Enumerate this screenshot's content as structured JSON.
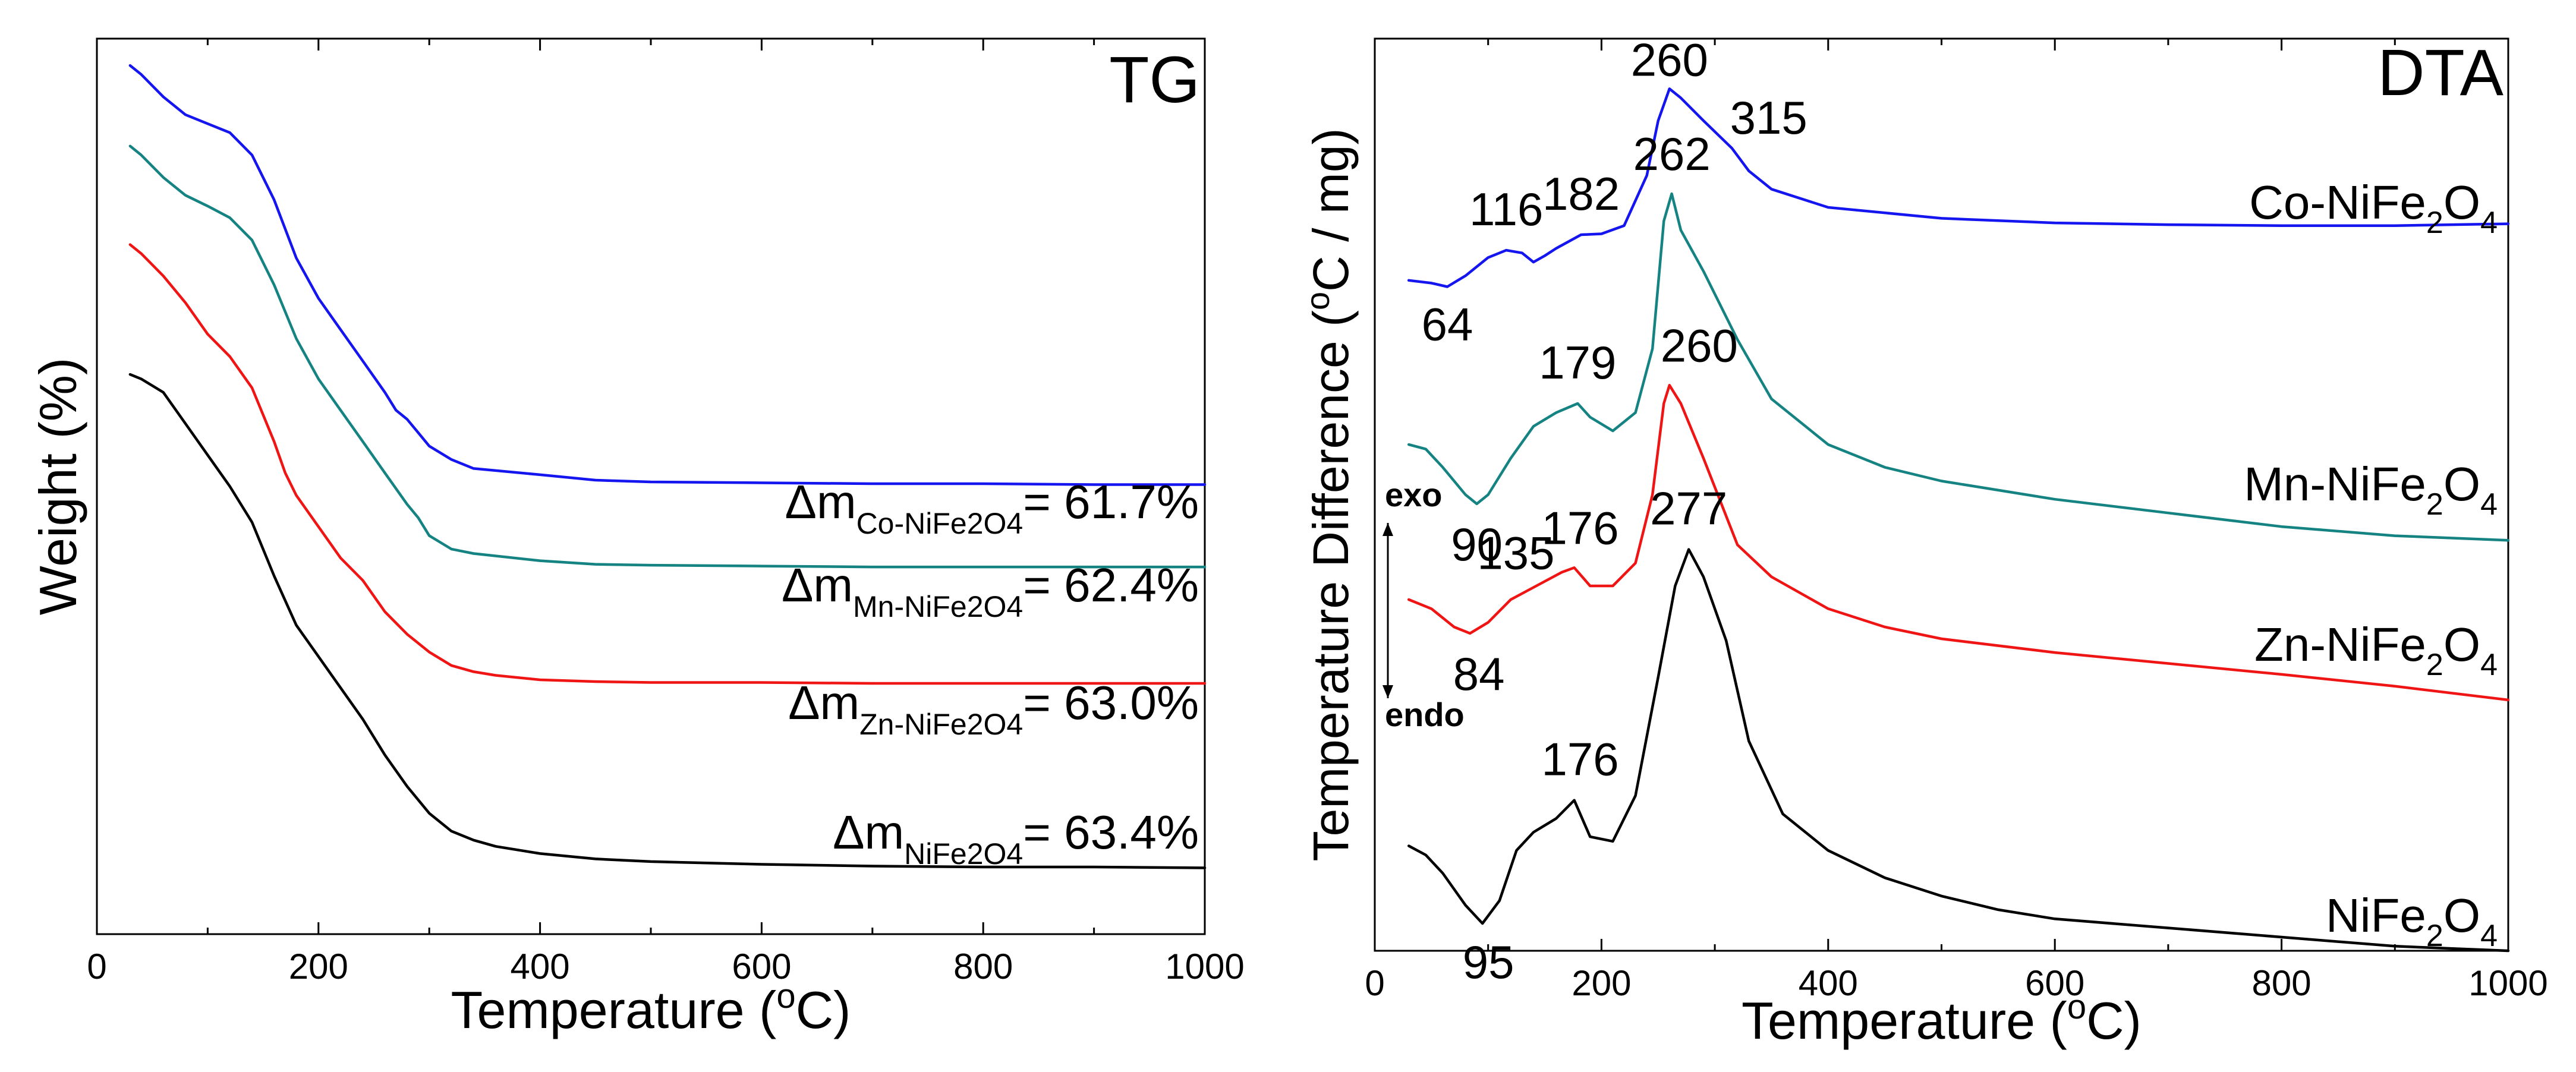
{
  "colors": {
    "co": "#1515f0",
    "mn": "#168383",
    "zn": "#f01515",
    "ni": "#000000"
  },
  "chart_data": [
    {
      "type": "line",
      "title": "TG",
      "xlabel": "Temperature (oC)",
      "xlabel_parts": {
        "base": "Temperature (",
        "sup": "o",
        "tail": "C)"
      },
      "ylabel": "Weight (%)",
      "xlim": [
        0,
        1000
      ],
      "ylim": [
        0,
        100
      ],
      "xticks": [
        "0",
        "200",
        "400",
        "600",
        "800",
        "1000"
      ],
      "xtick_values": [
        0,
        200,
        400,
        600,
        800,
        1000
      ],
      "yticks_shown": false,
      "series": [
        {
          "name": "Co-NiFe2O4",
          "color_key": "co",
          "x": [
            30,
            40,
            60,
            80,
            100,
            120,
            140,
            160,
            180,
            200,
            220,
            240,
            260,
            270,
            280,
            290,
            300,
            320,
            340,
            400,
            450,
            500,
            600,
            700,
            800,
            900,
            1000
          ],
          "y": [
            97,
            96,
            93.5,
            91.5,
            90.5,
            89.5,
            87,
            82,
            75.5,
            71,
            67.5,
            64,
            60.5,
            58.5,
            57.5,
            56,
            54.5,
            53,
            52,
            51.3,
            50.7,
            50.5,
            50.4,
            50.3,
            50.3,
            50.2,
            50.2
          ]
        },
        {
          "name": "Mn-NiFe2O4",
          "color_key": "mn",
          "x": [
            30,
            40,
            60,
            80,
            100,
            120,
            140,
            160,
            180,
            200,
            220,
            240,
            260,
            280,
            290,
            300,
            320,
            340,
            400,
            450,
            500,
            600,
            700,
            800,
            900,
            1000
          ],
          "y": [
            88,
            87,
            84.5,
            82.5,
            81.3,
            80,
            77.5,
            72.5,
            66.5,
            62,
            58.5,
            55,
            51.5,
            48,
            46.5,
            44.5,
            43,
            42.5,
            41.7,
            41.3,
            41.2,
            41.1,
            41,
            41,
            41,
            41
          ]
        },
        {
          "name": "Zn-NiFe2O4",
          "color_key": "zn",
          "x": [
            30,
            40,
            60,
            80,
            100,
            120,
            140,
            160,
            170,
            180,
            200,
            220,
            240,
            260,
            280,
            300,
            320,
            340,
            360,
            400,
            450,
            500,
            600,
            700,
            800,
            1000
          ],
          "y": [
            77,
            76,
            73.5,
            70.5,
            67,
            64.5,
            61,
            55,
            51.5,
            49,
            45.5,
            42,
            39.5,
            36,
            33.5,
            31.5,
            30,
            29.3,
            28.9,
            28.4,
            28.2,
            28.1,
            28.1,
            28,
            28,
            28
          ]
        },
        {
          "name": "NiFe2O4",
          "color_key": "ni",
          "x": [
            30,
            40,
            60,
            80,
            100,
            120,
            140,
            160,
            180,
            200,
            220,
            240,
            260,
            280,
            300,
            320,
            340,
            360,
            400,
            450,
            500,
            600,
            700,
            800,
            900,
            1000
          ],
          "y": [
            62.5,
            62,
            60.5,
            57,
            53.5,
            50,
            46,
            40,
            34.5,
            31,
            27.5,
            24,
            20,
            16.5,
            13.5,
            11.5,
            10.5,
            9.8,
            9,
            8.4,
            8.1,
            7.8,
            7.6,
            7.5,
            7.5,
            7.4
          ]
        }
      ],
      "annotations": [
        {
          "prefix": "Δm",
          "sub": "Co-NiFe2O4",
          "value": "= 61.7%",
          "color_key": "co"
        },
        {
          "prefix": "Δm",
          "sub": "Mn-NiFe2O4",
          "value": "= 62.4%",
          "color_key": "mn"
        },
        {
          "prefix": "Δm",
          "sub": "Zn-NiFe2O4",
          "value": "= 63.0%",
          "color_key": "zn"
        },
        {
          "prefix": "Δm",
          "sub": "NiFe2O4",
          "value": "= 63.4%",
          "color_key": "ni"
        }
      ]
    },
    {
      "type": "line",
      "title": "DTA",
      "xlabel": "Temperature (oC)",
      "xlabel_parts": {
        "base": "Temperature (",
        "sup": "o",
        "tail": "C)"
      },
      "ylabel": "Temperature Difference (oC / mg)",
      "ylabel_parts": {
        "base": "Temperature Difference (",
        "sup": "o",
        "tail": "C / mg)"
      },
      "xlim": [
        0,
        1000
      ],
      "ylim": [
        0,
        100
      ],
      "xticks": [
        "0",
        "200",
        "400",
        "600",
        "800",
        "1000"
      ],
      "xtick_values": [
        0,
        200,
        400,
        600,
        800,
        1000
      ],
      "yticks_shown": false,
      "exo_label": "exo",
      "endo_label": "endo",
      "series": [
        {
          "name": "Co-NiFe2O4",
          "label_parts": [
            "Co-NiFe",
            "2",
            "O",
            "4"
          ],
          "color_key": "co",
          "x": [
            30,
            50,
            64,
            80,
            100,
            116,
            130,
            140,
            150,
            160,
            182,
            200,
            220,
            240,
            250,
            260,
            270,
            290,
            315,
            330,
            350,
            400,
            500,
            600,
            700,
            800,
            900,
            1000
          ],
          "y": [
            73.5,
            73.2,
            72.8,
            74,
            76,
            76.8,
            76.5,
            75.5,
            76.2,
            77,
            78.5,
            78.6,
            79.5,
            85,
            91,
            94.5,
            93.5,
            91,
            88,
            85.5,
            83.5,
            81.5,
            80.3,
            79.8,
            79.6,
            79.5,
            79.5,
            79.7
          ]
        },
        {
          "name": "Mn-NiFe2O4",
          "color_key": "mn",
          "x": [
            30,
            45,
            60,
            80,
            90,
            100,
            120,
            140,
            160,
            179,
            190,
            210,
            230,
            245,
            255,
            262,
            270,
            290,
            320,
            350,
            400,
            450,
            500,
            600,
            700,
            800,
            900,
            1000
          ],
          "y": [
            55.5,
            55,
            53,
            50,
            49,
            50,
            54,
            57.5,
            59,
            60,
            58.5,
            57,
            59,
            66,
            80,
            83,
            79,
            74.5,
            67,
            60.5,
            55.5,
            53,
            51.5,
            49.5,
            48,
            46.5,
            45.5,
            45
          ]
        },
        {
          "name": "Zn-NiFe2O4",
          "color_key": "zn",
          "x": [
            30,
            50,
            70,
            84,
            100,
            120,
            135,
            150,
            165,
            176,
            190,
            210,
            230,
            245,
            255,
            260,
            270,
            290,
            320,
            350,
            400,
            450,
            500,
            600,
            700,
            800,
            900,
            1000
          ],
          "y": [
            38.5,
            37.5,
            35.5,
            34.8,
            36,
            38.5,
            39.5,
            40.5,
            41.5,
            42,
            40,
            40,
            42.5,
            50,
            60,
            62,
            60,
            54,
            44.5,
            41,
            37.5,
            35.5,
            34.2,
            32.7,
            31.5,
            30.3,
            29,
            27.5
          ]
        },
        {
          "name": "NiFe2O4",
          "color_key": "ni",
          "x": [
            30,
            45,
            60,
            80,
            95,
            110,
            125,
            140,
            160,
            176,
            190,
            210,
            230,
            250,
            265,
            277,
            290,
            310,
            330,
            360,
            400,
            450,
            500,
            550,
            600,
            700,
            800,
            900,
            1000
          ],
          "y": [
            11.5,
            10.5,
            8.5,
            5,
            3,
            5.5,
            11,
            13,
            14.5,
            16.5,
            12.5,
            12,
            17,
            30,
            40,
            44,
            41,
            34,
            23,
            15,
            11,
            8,
            6,
            4.5,
            3.5,
            2.5,
            1.5,
            0.5,
            0
          ]
        }
      ],
      "peak_labels": [
        {
          "text": "64",
          "x": 64,
          "series": "Co-NiFe2O4"
        },
        {
          "text": "116",
          "x": 116,
          "series": "Co-NiFe2O4"
        },
        {
          "text": "182",
          "x": 182,
          "series": "Co-NiFe2O4"
        },
        {
          "text": "260",
          "x": 260,
          "series": "Co-NiFe2O4"
        },
        {
          "text": "315",
          "x": 315,
          "series": "Co-NiFe2O4"
        },
        {
          "text": "90",
          "x": 90,
          "series": "Mn-NiFe2O4"
        },
        {
          "text": "179",
          "x": 179,
          "series": "Mn-NiFe2O4"
        },
        {
          "text": "262",
          "x": 262,
          "series": "Mn-NiFe2O4"
        },
        {
          "text": "84",
          "x": 84,
          "series": "Zn-NiFe2O4"
        },
        {
          "text": "135",
          "x": 135,
          "series": "Zn-NiFe2O4"
        },
        {
          "text": "176",
          "x": 176,
          "series": "Zn-NiFe2O4"
        },
        {
          "text": "260",
          "x": 260,
          "series": "Zn-NiFe2O4"
        },
        {
          "text": "95",
          "x": 95,
          "series": "NiFe2O4"
        },
        {
          "text": "176",
          "x": 176,
          "series": "NiFe2O4"
        },
        {
          "text": "277",
          "x": 277,
          "series": "NiFe2O4"
        }
      ],
      "series_labels": [
        {
          "text": "Co-NiFe2O4",
          "base": "Co-NiFe",
          "s1": "2",
          "mid": "O",
          "s2": "4",
          "series": "Co-NiFe2O4"
        },
        {
          "text": "Mn-NiFe2O4",
          "base": "Mn-NiFe",
          "s1": "2",
          "mid": "O",
          "s2": "4",
          "series": "Mn-NiFe2O4"
        },
        {
          "text": "Zn-NiFe2O4",
          "base": "Zn-NiFe",
          "s1": "2",
          "mid": "O",
          "s2": "4",
          "series": "Zn-NiFe2O4"
        },
        {
          "text": "NiFe2O4",
          "base": "NiFe",
          "s1": "2",
          "mid": "O",
          "s2": "4",
          "series": "NiFe2O4"
        }
      ]
    }
  ]
}
